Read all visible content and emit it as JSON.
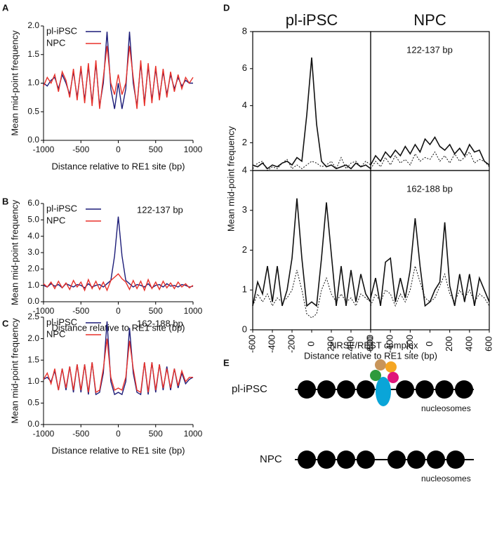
{
  "chart_data": [
    {
      "panel": "A",
      "type": "line",
      "xlabel": "Distance relative to RE1 site (bp)",
      "ylabel": "Mean mid-point frequency",
      "x": [
        -1000,
        -950,
        -900,
        -850,
        -800,
        -750,
        -700,
        -650,
        -600,
        -550,
        -500,
        -450,
        -400,
        -350,
        -300,
        -250,
        -200,
        -150,
        -100,
        -50,
        0,
        50,
        100,
        150,
        200,
        250,
        300,
        350,
        400,
        450,
        500,
        550,
        600,
        650,
        700,
        750,
        800,
        850,
        900,
        950,
        1000
      ],
      "xlim": [
        -1000,
        1000
      ],
      "xticks": [
        -1000,
        -500,
        0,
        500,
        1000
      ],
      "ylim": [
        0,
        2
      ],
      "yticks": [
        {
          "value": 0,
          "label": "0.0"
        },
        {
          "value": 0.5,
          "label": "0.5"
        },
        {
          "value": 1,
          "label": "1.0"
        },
        {
          "value": 1.5,
          "label": "1.5"
        },
        {
          "value": 2,
          "label": "2.0"
        }
      ],
      "legend": "upper left",
      "series": [
        {
          "name": "pl-iPSC",
          "color": "#1c1c78",
          "values": [
            1.0,
            0.95,
            1.05,
            1.1,
            0.9,
            1.15,
            1.0,
            0.8,
            1.2,
            0.75,
            1.25,
            0.7,
            1.3,
            0.65,
            1.35,
            0.6,
            1.0,
            1.9,
            0.9,
            0.55,
            1.0,
            0.55,
            0.9,
            1.9,
            1.0,
            0.6,
            1.35,
            0.65,
            1.3,
            0.7,
            1.25,
            0.75,
            1.2,
            0.8,
            1.15,
            0.9,
            1.1,
            0.95,
            1.05,
            1.0,
            1.0
          ]
        },
        {
          "name": "NPC",
          "color": "#e8312a",
          "values": [
            0.95,
            1.1,
            1.0,
            1.15,
            0.85,
            1.2,
            1.05,
            0.75,
            1.25,
            0.7,
            1.3,
            0.65,
            1.35,
            0.6,
            1.4,
            0.55,
            1.1,
            1.65,
            1.0,
            0.8,
            1.15,
            0.8,
            1.0,
            1.65,
            1.1,
            0.55,
            1.4,
            0.6,
            1.35,
            0.65,
            1.3,
            0.7,
            1.25,
            0.75,
            1.2,
            0.85,
            1.15,
            0.9,
            1.1,
            1.0,
            1.1
          ]
        }
      ]
    },
    {
      "panel": "B",
      "type": "line",
      "xlabel": "Distance relative to RE1 site (bp)",
      "ylabel": "Mean mid-point frequency",
      "annotation": "122-137 bp",
      "x": [
        -1000,
        -950,
        -900,
        -850,
        -800,
        -750,
        -700,
        -650,
        -600,
        -550,
        -500,
        -450,
        -400,
        -350,
        -300,
        -250,
        -200,
        -150,
        -100,
        -50,
        0,
        50,
        100,
        150,
        200,
        250,
        300,
        350,
        400,
        450,
        500,
        550,
        600,
        650,
        700,
        750,
        800,
        850,
        900,
        950,
        1000
      ],
      "xlim": [
        -1000,
        1000
      ],
      "xticks": [
        -1000,
        -500,
        0,
        500,
        1000
      ],
      "ylim": [
        0,
        6
      ],
      "yticks": [
        {
          "value": 0,
          "label": "0.0"
        },
        {
          "value": 1,
          "label": "1.0"
        },
        {
          "value": 2,
          "label": "2.0"
        },
        {
          "value": 3,
          "label": "3.0"
        },
        {
          "value": 4,
          "label": "4.0"
        },
        {
          "value": 5,
          "label": "5.0"
        },
        {
          "value": 6,
          "label": "6.0"
        }
      ],
      "legend": "upper left",
      "series": [
        {
          "name": "pl-iPSC",
          "color": "#1c1c78",
          "values": [
            1.0,
            0.9,
            1.1,
            0.95,
            1.05,
            0.85,
            1.1,
            1.0,
            0.9,
            1.05,
            1.0,
            0.85,
            1.1,
            0.9,
            1.0,
            1.05,
            0.9,
            1.1,
            1.3,
            2.8,
            5.2,
            2.8,
            1.3,
            1.1,
            0.9,
            1.05,
            1.0,
            0.9,
            1.1,
            0.85,
            1.0,
            1.05,
            0.9,
            1.1,
            0.95,
            1.0,
            0.9,
            1.05,
            1.0,
            0.9,
            0.95
          ]
        },
        {
          "name": "NPC",
          "color": "#e8312a",
          "values": [
            1.1,
            0.9,
            1.2,
            0.8,
            1.25,
            0.85,
            1.15,
            0.75,
            1.3,
            0.9,
            1.2,
            0.7,
            1.35,
            0.8,
            1.25,
            0.75,
            1.2,
            0.7,
            1.3,
            1.5,
            1.7,
            1.4,
            1.2,
            0.75,
            1.3,
            0.8,
            1.25,
            0.7,
            1.35,
            0.8,
            1.2,
            0.75,
            1.25,
            0.85,
            1.15,
            0.8,
            1.2,
            0.9,
            1.1,
            0.85,
            1.0
          ]
        }
      ]
    },
    {
      "panel": "C",
      "type": "line",
      "xlabel": "Distance relative to RE1 site (bp)",
      "ylabel": "Mean mid-point frequency",
      "annotation": "162-188 bp",
      "x": [
        -1000,
        -950,
        -900,
        -850,
        -800,
        -750,
        -700,
        -650,
        -600,
        -550,
        -500,
        -450,
        -400,
        -350,
        -300,
        -250,
        -200,
        -150,
        -100,
        -50,
        0,
        50,
        100,
        150,
        200,
        250,
        300,
        350,
        400,
        450,
        500,
        550,
        600,
        650,
        700,
        750,
        800,
        850,
        900,
        950,
        1000
      ],
      "xlim": [
        -1000,
        1000
      ],
      "xticks": [
        -1000,
        -500,
        0,
        500,
        1000
      ],
      "ylim": [
        0,
        2.5
      ],
      "yticks": [
        {
          "value": 0,
          "label": "0.0"
        },
        {
          "value": 0.5,
          "label": "0.5"
        },
        {
          "value": 1,
          "label": "1.0"
        },
        {
          "value": 1.5,
          "label": "1.5"
        },
        {
          "value": 2,
          "label": "2.0"
        },
        {
          "value": 2.5,
          "label": "2.5"
        }
      ],
      "legend": "upper left",
      "series": [
        {
          "name": "pl-iPSC",
          "color": "#1c1c78",
          "values": [
            1.05,
            1.1,
            1.0,
            1.25,
            0.8,
            1.3,
            0.8,
            1.35,
            0.75,
            1.4,
            0.75,
            1.4,
            0.7,
            1.45,
            0.7,
            0.75,
            1.2,
            2.4,
            1.0,
            0.7,
            0.75,
            0.7,
            1.0,
            2.25,
            1.2,
            0.75,
            0.7,
            1.45,
            0.7,
            1.45,
            0.75,
            1.4,
            0.8,
            1.35,
            0.8,
            1.3,
            0.85,
            1.2,
            0.95,
            1.05,
            1.1
          ]
        },
        {
          "name": "NPC",
          "color": "#e8312a",
          "values": [
            1.05,
            1.2,
            0.95,
            1.3,
            0.8,
            1.3,
            0.85,
            1.35,
            0.8,
            1.4,
            0.8,
            1.4,
            0.75,
            1.45,
            0.75,
            0.8,
            1.3,
            2.0,
            1.1,
            0.8,
            0.85,
            0.8,
            1.1,
            1.95,
            1.3,
            0.8,
            0.75,
            1.45,
            0.75,
            1.45,
            0.8,
            1.4,
            0.85,
            1.3,
            0.85,
            1.3,
            0.9,
            1.25,
            1.0,
            1.1,
            1.1
          ]
        }
      ]
    },
    {
      "panel": "D",
      "type": "line-grid",
      "xlabel": "Distance relative to RE1 site (bp)",
      "ylabel": "Mean mid-point frequency",
      "columns": [
        "pl-iPSC",
        "NPC"
      ],
      "x": [
        -600,
        -550,
        -500,
        -450,
        -400,
        -350,
        -300,
        -250,
        -200,
        -150,
        -100,
        -50,
        0,
        50,
        100,
        150,
        200,
        250,
        300,
        350,
        400,
        450,
        500,
        550,
        600
      ],
      "xlim": [
        -600,
        600
      ],
      "xticks": [
        -600,
        -400,
        -200,
        0,
        200,
        400,
        600
      ],
      "rows": [
        {
          "annotation": "122-137 bp",
          "ylim": [
            0.5,
            8
          ],
          "yticks": [
            2,
            4,
            6,
            8
          ],
          "cells": [
            {
              "series": [
                {
                  "color": "#111111",
                  "style": "solid",
                  "values": [
                    0.8,
                    0.7,
                    0.9,
                    0.6,
                    0.8,
                    0.7,
                    0.9,
                    1.0,
                    0.8,
                    1.2,
                    1.0,
                    3.5,
                    6.6,
                    3.0,
                    1.0,
                    0.7,
                    0.8,
                    0.6,
                    0.7,
                    0.8,
                    0.6,
                    0.9,
                    0.7,
                    0.8,
                    0.6
                  ]
                },
                {
                  "color": "#111111",
                  "style": "dotted",
                  "values": [
                    0.6,
                    0.9,
                    1.0,
                    0.5,
                    0.7,
                    0.6,
                    0.9,
                    1.1,
                    0.6,
                    0.8,
                    0.6,
                    0.8,
                    1.0,
                    0.9,
                    0.7,
                    0.8,
                    1.0,
                    0.6,
                    1.2,
                    0.6,
                    0.9,
                    1.0,
                    0.7,
                    1.0,
                    0.8
                  ]
                }
              ]
            },
            {
              "series": [
                {
                  "color": "#111111",
                  "style": "solid",
                  "values": [
                    0.8,
                    1.3,
                    1.0,
                    1.5,
                    1.2,
                    1.6,
                    1.3,
                    1.8,
                    1.4,
                    1.9,
                    1.5,
                    2.2,
                    1.9,
                    2.3,
                    1.8,
                    1.6,
                    1.9,
                    1.4,
                    1.7,
                    1.3,
                    1.9,
                    1.5,
                    1.6,
                    1.0,
                    0.8
                  ]
                },
                {
                  "color": "#111111",
                  "style": "dotted",
                  "values": [
                    0.6,
                    1.0,
                    0.7,
                    1.2,
                    0.8,
                    1.3,
                    0.9,
                    1.1,
                    0.8,
                    1.4,
                    1.0,
                    1.2,
                    1.1,
                    1.5,
                    1.0,
                    1.3,
                    0.9,
                    1.4,
                    1.0,
                    1.2,
                    1.5,
                    0.9,
                    1.1,
                    1.0,
                    0.7
                  ]
                }
              ]
            }
          ]
        },
        {
          "annotation": "162-188 bp",
          "ylim": [
            0,
            4
          ],
          "yticks": [
            0,
            1,
            2,
            3,
            4
          ],
          "cells": [
            {
              "series": [
                {
                  "color": "#111111",
                  "style": "solid",
                  "values": [
                    0.6,
                    1.2,
                    0.9,
                    1.6,
                    0.7,
                    1.6,
                    0.6,
                    1.0,
                    1.8,
                    3.3,
                    1.8,
                    0.6,
                    0.7,
                    0.6,
                    1.8,
                    3.2,
                    1.9,
                    0.6,
                    1.6,
                    0.6,
                    1.5,
                    0.7,
                    1.4,
                    0.9,
                    0.7
                  ]
                },
                {
                  "color": "#111111",
                  "style": "dotted",
                  "values": [
                    0.6,
                    0.9,
                    0.7,
                    0.9,
                    0.6,
                    0.8,
                    0.7,
                    0.8,
                    1.0,
                    1.5,
                    1.0,
                    0.4,
                    0.3,
                    0.4,
                    1.0,
                    1.3,
                    0.9,
                    0.7,
                    0.9,
                    0.7,
                    0.8,
                    0.6,
                    0.9,
                    0.8,
                    0.7
                  ]
                }
              ]
            },
            {
              "series": [
                {
                  "color": "#111111",
                  "style": "solid",
                  "values": [
                    0.8,
                    1.3,
                    0.6,
                    1.7,
                    1.8,
                    0.7,
                    1.3,
                    0.8,
                    1.5,
                    2.8,
                    1.6,
                    0.6,
                    0.7,
                    1.0,
                    1.2,
                    2.7,
                    1.1,
                    0.6,
                    1.4,
                    0.7,
                    1.4,
                    0.6,
                    1.3,
                    1.0,
                    0.7
                  ]
                },
                {
                  "color": "#111111",
                  "style": "dotted",
                  "values": [
                    0.6,
                    0.9,
                    0.7,
                    1.0,
                    0.9,
                    0.6,
                    0.9,
                    0.7,
                    1.0,
                    1.6,
                    1.2,
                    0.8,
                    0.7,
                    0.8,
                    1.1,
                    1.4,
                    0.9,
                    0.7,
                    1.0,
                    0.8,
                    1.0,
                    0.7,
                    0.9,
                    0.8,
                    0.6
                  ]
                }
              ]
            }
          ]
        }
      ]
    }
  ],
  "diagram": {
    "panel": "E",
    "complex_label": "NRSF/REST complex",
    "rows": [
      {
        "label": "pl-iPSC",
        "note": "nucleosomes"
      },
      {
        "label": "NPC",
        "note": "nucleosomes"
      }
    ]
  }
}
